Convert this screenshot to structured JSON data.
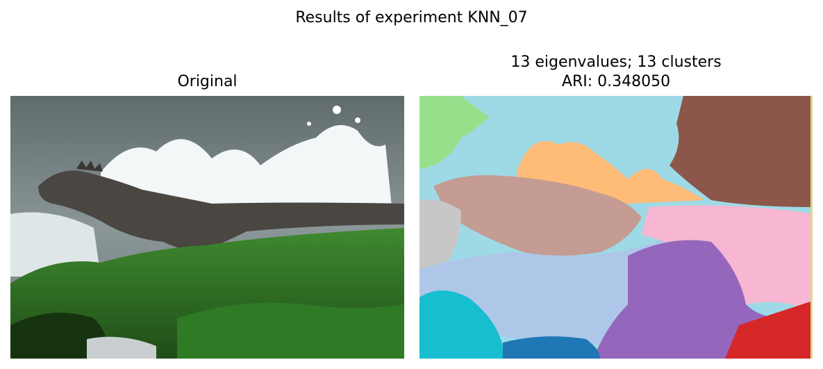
{
  "figure": {
    "suptitle": "Results of experiment KNN_07"
  },
  "left_panel": {
    "title": "Original",
    "image_subject": "marine iguana on mossy rock with splashing wave"
  },
  "right_panel": {
    "title_line1": "13 eigenvalues; 13 clusters",
    "title_line2": "ARI: 0.348050",
    "cluster_count": 13,
    "cluster_colors": [
      "#9edae5",
      "#98df8a",
      "#8c564b",
      "#ffbb78",
      "#c49c94",
      "#c7c7c7",
      "#aec7e8",
      "#9467bd",
      "#f7b6d2",
      "#17becf",
      "#1f77b4",
      "#d62728",
      "#dbdb8d"
    ]
  }
}
